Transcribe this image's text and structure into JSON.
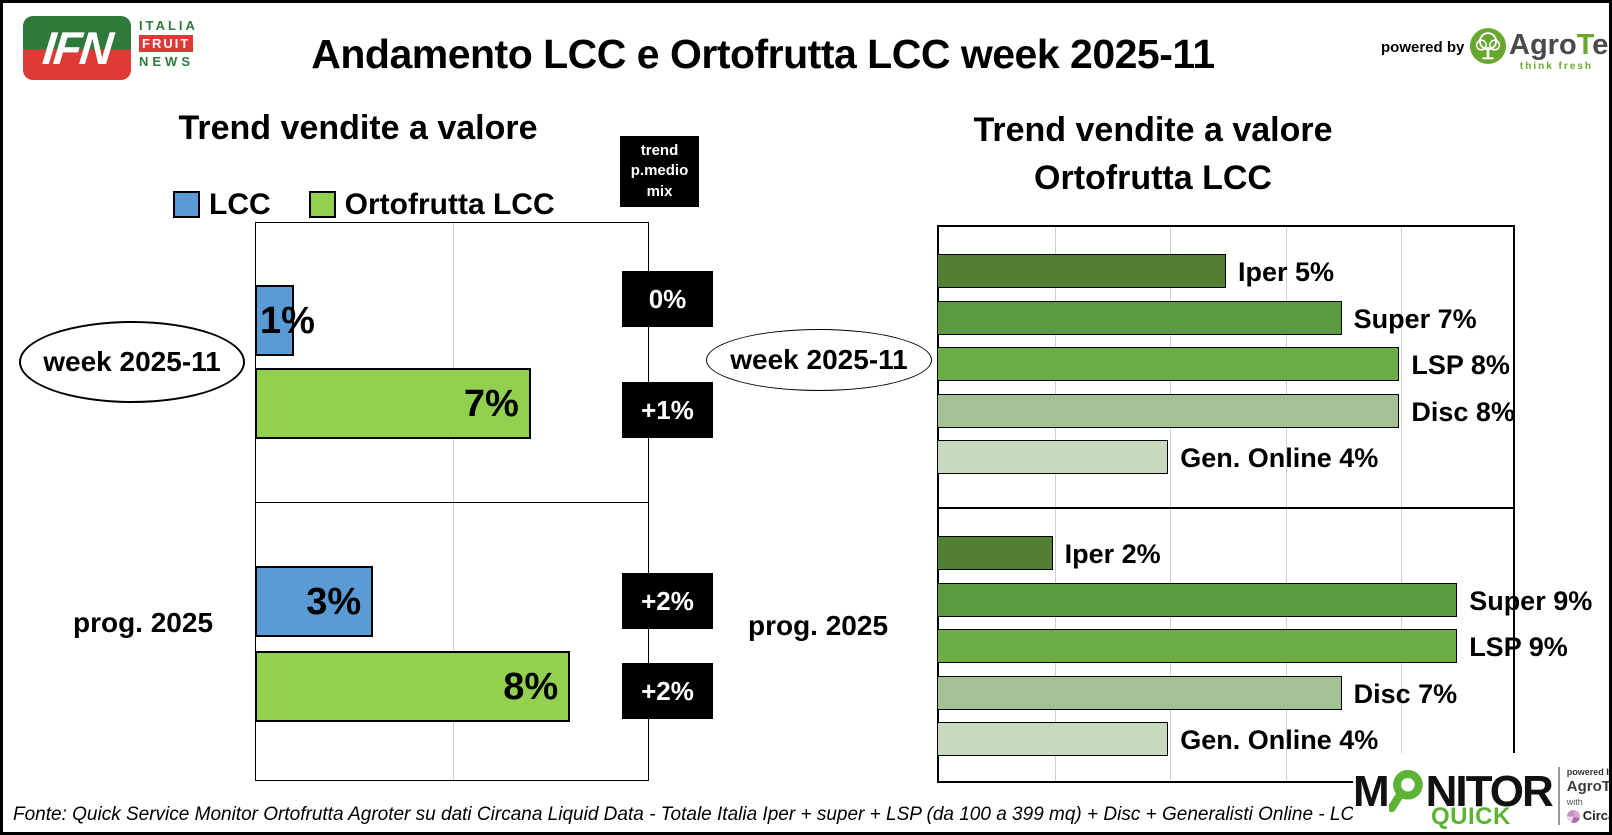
{
  "header": {
    "ifn_logo": {
      "abbr": "IFN",
      "word1": "ITALIA",
      "word2": "FRUIT",
      "word3": "NEWS"
    },
    "title": "Andamento LCC e Ortofrutta LCC week 2025-11",
    "powered_by": "powered by",
    "agroter_name_head": "Agro",
    "agroter_name_t": "T",
    "agroter_name_tail": "er",
    "agroter_tagline": "think fresh"
  },
  "left_chart": {
    "title": "Trend vendite a valore",
    "legend": [
      {
        "label": "LCC",
        "color": "#5B9BD5"
      },
      {
        "label": "Ortofrutta LCC",
        "color": "#92D050"
      }
    ],
    "mix_box_label": "trend\np.medio\nmix",
    "row_label_week": "week 2025-11",
    "row_label_prog": "prog. 2025"
  },
  "right_chart": {
    "title_line1": "Trend vendite a valore",
    "title_line2": "Ortofrutta LCC",
    "row_label_week": "week 2025-11",
    "row_label_prog": "prog. 2025"
  },
  "footer": {
    "source": "Fonte: Quick Service Monitor Ortofrutta Agroter su dati Circana Liquid Data - Totale Italia Iper + super + LSP (da 100 a 399 mq) + Disc + Generalisti Online - LCC"
  },
  "monitor_logo": {
    "m_part": "M",
    "rest": "NITOR",
    "sub": "QUICK",
    "powered_by": "powered by",
    "agroter": "AgroTer",
    "with_word": "with",
    "circana": "Circana."
  },
  "chart_data": [
    {
      "type": "bar",
      "orientation": "horizontal",
      "title": "Trend vendite a valore",
      "categories": [
        "week 2025-11",
        "prog. 2025"
      ],
      "series": [
        {
          "name": "LCC",
          "color": "#5B9BD5",
          "values": [
            1,
            3
          ]
        },
        {
          "name": "Ortofrutta LCC",
          "color": "#92D050",
          "values": [
            7,
            8
          ]
        }
      ],
      "bar_labels": [
        [
          "1%",
          "7%"
        ],
        [
          "3%",
          "8%"
        ]
      ],
      "price_mix_trend": {
        "header": "trend p.medio mix",
        "values": [
          [
            "0%",
            "+1%"
          ],
          [
            "+2%",
            "+2%"
          ]
        ]
      },
      "xlim": [
        0,
        10
      ],
      "gridline_x": 5,
      "grid": true,
      "legend_position": "top"
    },
    {
      "type": "bar",
      "orientation": "horizontal",
      "title": "Trend vendite a valore Ortofrutta LCC",
      "categories": [
        "week 2025-11",
        "prog. 2025"
      ],
      "channels": [
        "Iper",
        "Super",
        "LSP",
        "Disc",
        "Gen. Online"
      ],
      "channel_colors": [
        "#527F31",
        "#5C9A42",
        "#6CAD4A",
        "#A4C094",
        "#C7D9BE"
      ],
      "series": [
        {
          "category": "week 2025-11",
          "values": [
            5,
            7,
            8,
            8,
            4
          ]
        },
        {
          "category": "prog. 2025",
          "values": [
            2,
            9,
            9,
            7,
            4
          ]
        }
      ],
      "bar_label_format": "{channel} {value}%",
      "xlim": [
        0,
        10
      ],
      "gridlines_x": [
        2,
        4,
        6,
        8
      ],
      "grid": true
    }
  ]
}
